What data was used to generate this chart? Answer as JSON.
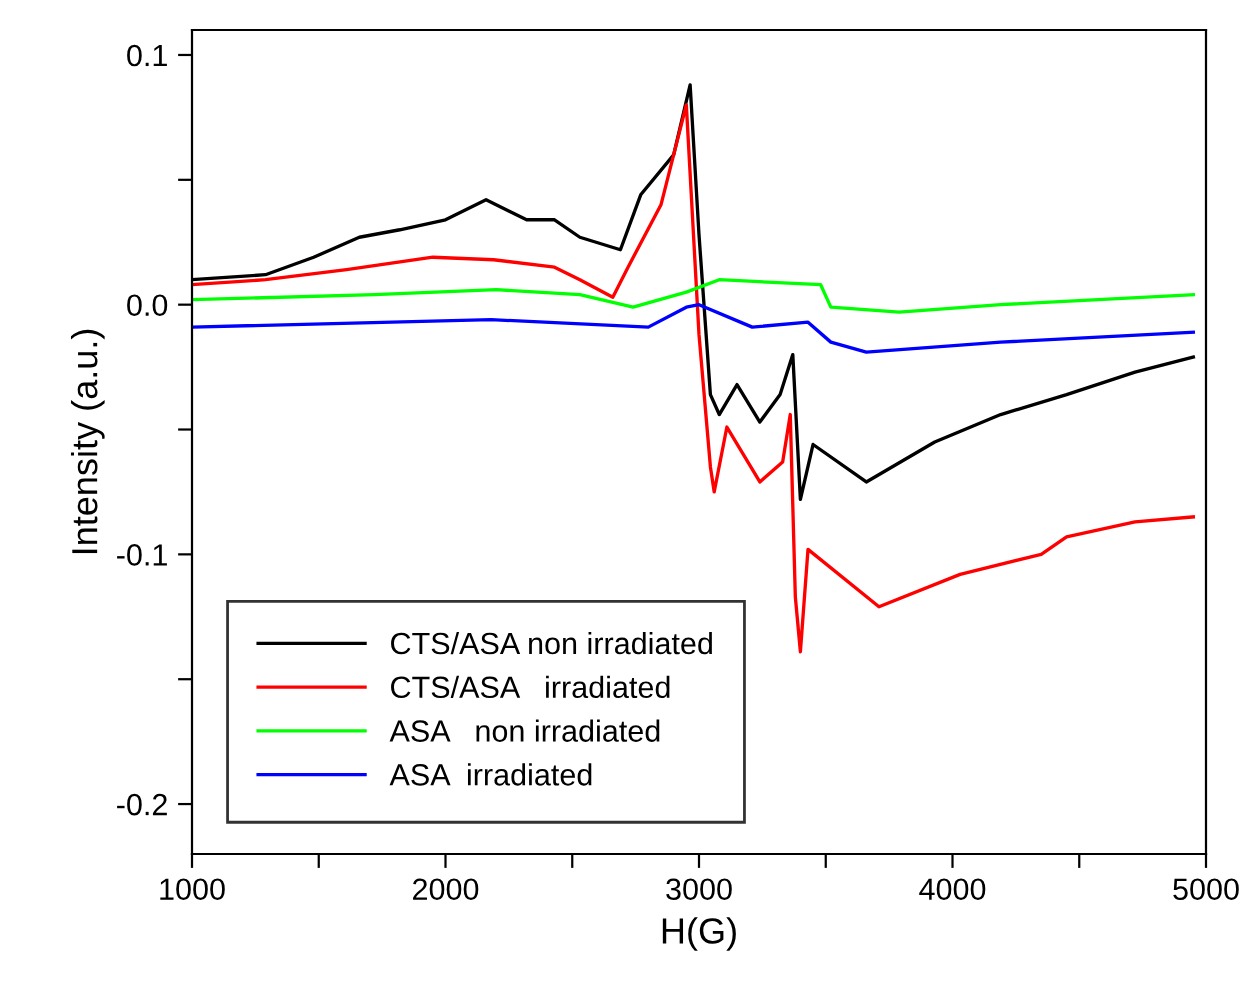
{
  "chart_data": {
    "type": "line",
    "xlabel": "H(G)",
    "ylabel": "Intensity (a.u.)",
    "xlim": [
      1000,
      5000
    ],
    "ylim": [
      -0.22,
      0.11
    ],
    "xticks": [
      1000,
      {
        "value": 1500,
        "label": null
      },
      2000,
      {
        "value": 2500,
        "label": null
      },
      3000,
      {
        "value": 3500,
        "label": null
      },
      4000,
      {
        "value": 4500,
        "label": null
      },
      5000
    ],
    "yticks": [
      {
        "value": -0.2,
        "label": "-0.2"
      },
      {
        "value": -0.15,
        "label": null
      },
      {
        "value": -0.1,
        "label": "-0.1"
      },
      {
        "value": -0.05,
        "label": null
      },
      {
        "value": 0,
        "label": "0.0"
      },
      {
        "value": 0.05,
        "label": null
      },
      {
        "value": 0.1,
        "label": "0.1"
      }
    ],
    "grid": false,
    "legend": "bottom left",
    "marker": "none",
    "line_style": "solid",
    "series": [
      {
        "name": "CTS/ASA non irradiated",
        "color": "#000000",
        "x": [
          1000,
          1290,
          1480,
          1660,
          1820,
          2000,
          2160,
          2320,
          2430,
          2530,
          2690,
          2770,
          2900,
          2965,
          3000,
          3045,
          3080,
          3150,
          3240,
          3320,
          3370,
          3400,
          3450,
          3660,
          3930,
          4190,
          4450,
          4720,
          4950
        ],
        "values": [
          0.01,
          0.012,
          0.019,
          0.027,
          0.03,
          0.034,
          0.042,
          0.034,
          0.034,
          0.027,
          0.022,
          0.044,
          0.06,
          0.088,
          0.028,
          -0.036,
          -0.044,
          -0.032,
          -0.047,
          -0.036,
          -0.02,
          -0.078,
          -0.056,
          -0.071,
          -0.055,
          -0.044,
          -0.036,
          -0.027,
          -0.021
        ]
      },
      {
        "name": "CTS/ASA   irradiated",
        "color": "#ff0000",
        "x": [
          1000,
          1290,
          1610,
          1950,
          2190,
          2430,
          2530,
          2660,
          2720,
          2850,
          2950,
          3000,
          3045,
          3060,
          3110,
          3240,
          3330,
          3360,
          3380,
          3400,
          3430,
          3710,
          4030,
          4350,
          4450,
          4720,
          4950
        ],
        "values": [
          0.008,
          0.01,
          0.014,
          0.019,
          0.018,
          0.015,
          0.01,
          0.003,
          0.015,
          0.04,
          0.08,
          -0.012,
          -0.065,
          -0.075,
          -0.049,
          -0.071,
          -0.063,
          -0.044,
          -0.117,
          -0.139,
          -0.098,
          -0.121,
          -0.108,
          -0.1,
          -0.093,
          -0.087,
          -0.085
        ]
      },
      {
        "name": "ASA   non irradiated",
        "color": "#00ff00",
        "x": [
          1000,
          1720,
          2200,
          2530,
          2740,
          2950,
          3080,
          3480,
          3520,
          3790,
          4190,
          4950
        ],
        "values": [
          0.002,
          0.004,
          0.006,
          0.004,
          -0.001,
          0.005,
          0.01,
          0.008,
          -0.001,
          -0.003,
          0.0,
          0.004
        ]
      },
      {
        "name": "ASA  irradiated",
        "color": "#0000ff",
        "x": [
          1000,
          2180,
          2800,
          2950,
          3000,
          3210,
          3430,
          3520,
          3660,
          4190,
          4950
        ],
        "values": [
          -0.009,
          -0.006,
          -0.009,
          -0.001,
          0.0,
          -0.009,
          -0.007,
          -0.015,
          -0.019,
          -0.015,
          -0.011
        ]
      }
    ]
  }
}
